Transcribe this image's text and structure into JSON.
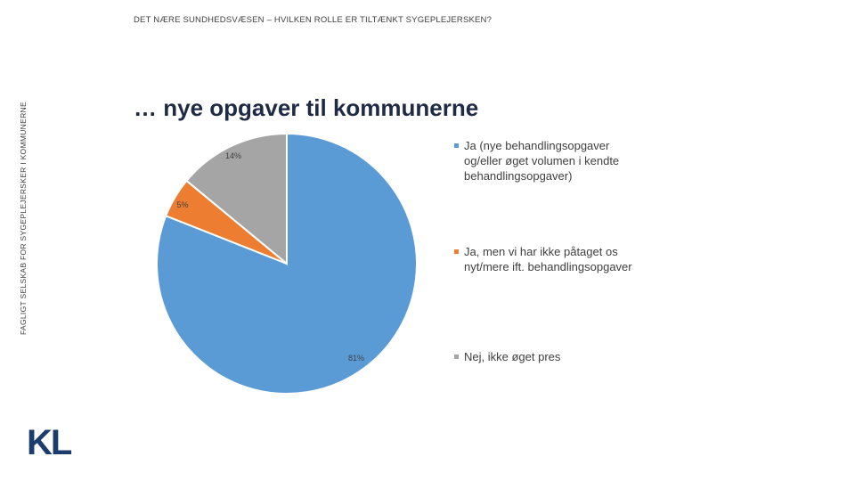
{
  "header": {
    "topic": "DET NÆRE SUNDHEDSVÆSEN – HVILKEN ROLLE ER TILTÆNKT SYGEPLEJERSKEN?",
    "side_label": "FAGLIGT SELSKAB FOR SYGEPLEJERSKER I KOMMUNERNE"
  },
  "logo": {
    "text": "KL"
  },
  "chart_data": {
    "type": "pie",
    "title": "… nye opgaver til kommunerne",
    "series": [
      {
        "name": "Ja (nye behandlingsopgaver og/eller øget volumen i kendte behandlingsopgaver)",
        "value": 81,
        "label": "81%",
        "color": "#5b9bd5"
      },
      {
        "name": "Ja, men vi har ikke påtaget os nyt/mere ift. behandlingsopgaver",
        "value": 5,
        "label": "5%",
        "color": "#ed7d31"
      },
      {
        "name": "Nej, ikke øget pres",
        "value": 14,
        "label": "14%",
        "color": "#a5a5a5"
      }
    ],
    "legend_position": "right"
  }
}
